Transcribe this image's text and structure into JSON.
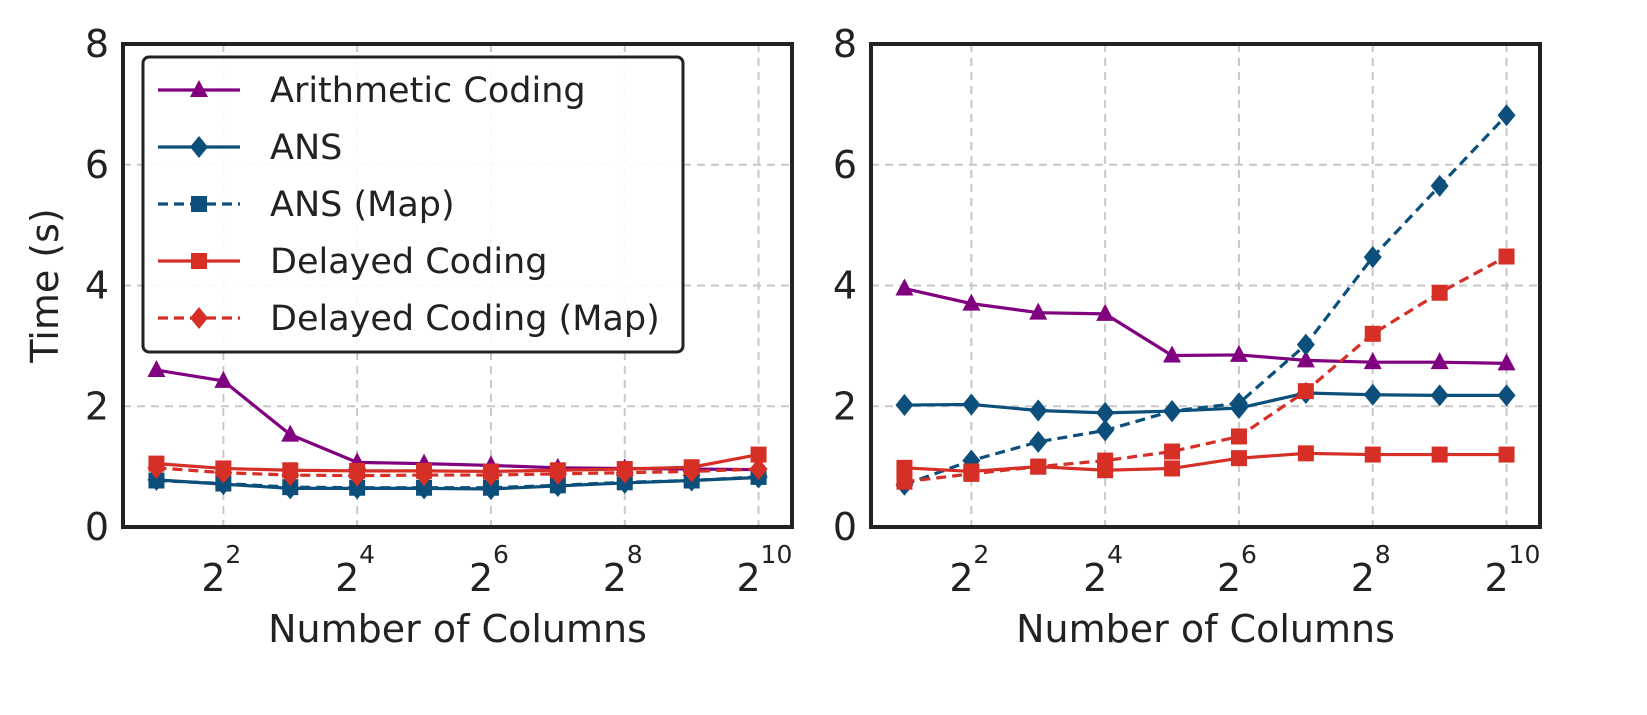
{
  "colors": {
    "arith": "#800080",
    "ans": "#0b4f7a",
    "delayed": "#d62f26"
  },
  "chart_data": [
    {
      "type": "line",
      "title": "",
      "xlabel": "Number of Columns",
      "ylabel": "Time (s)",
      "x": [
        1,
        2,
        3,
        4,
        5,
        6,
        7,
        8,
        9,
        10
      ],
      "x_scale": "log2 (exponent shown)",
      "xlim": [
        0.5,
        10.5
      ],
      "ylim": [
        0,
        8
      ],
      "yticks": [
        "0",
        "2",
        "4",
        "6",
        "8"
      ],
      "xticks": [
        {
          "x": 2,
          "base": "2",
          "exp": "2"
        },
        {
          "x": 4,
          "base": "2",
          "exp": "4"
        },
        {
          "x": 6,
          "base": "2",
          "exp": "6"
        },
        {
          "x": 8,
          "base": "2",
          "exp": "8"
        },
        {
          "x": 10,
          "base": "2",
          "exp": "10"
        }
      ],
      "grid": true,
      "legend_position": "top-left",
      "series": [
        {
          "key": "arith",
          "name": "Arithmetic Coding",
          "style": "solid",
          "marker": "triangle",
          "values": [
            2.6,
            2.42,
            1.53,
            1.07,
            1.05,
            1.02,
            0.98,
            0.97,
            0.96,
            0.95
          ]
        },
        {
          "key": "ans",
          "name": "ANS",
          "style": "solid",
          "marker": "diamond",
          "values": [
            0.78,
            0.71,
            0.64,
            0.64,
            0.64,
            0.63,
            0.68,
            0.73,
            0.77,
            0.82
          ]
        },
        {
          "key": "ans_map",
          "name": "ANS (Map)",
          "style": "dashed",
          "marker": "square",
          "values": [
            0.77,
            0.72,
            0.66,
            0.65,
            0.65,
            0.65,
            0.69,
            0.74,
            0.77,
            0.83
          ]
        },
        {
          "key": "delayed",
          "name": "Delayed Coding",
          "style": "solid",
          "marker": "square",
          "values": [
            1.05,
            0.97,
            0.94,
            0.93,
            0.93,
            0.92,
            0.94,
            0.96,
            0.99,
            1.2
          ]
        },
        {
          "key": "delayed_map",
          "name": "Delayed Coding (Map)",
          "style": "dashed",
          "marker": "diamond",
          "values": [
            0.98,
            0.9,
            0.86,
            0.85,
            0.86,
            0.86,
            0.88,
            0.9,
            0.92,
            0.96
          ]
        }
      ]
    },
    {
      "type": "line",
      "title": "",
      "xlabel": "Number of Columns",
      "ylabel": "",
      "x": [
        1,
        2,
        3,
        4,
        5,
        6,
        7,
        8,
        9,
        10
      ],
      "x_scale": "log2 (exponent shown)",
      "xlim": [
        0.5,
        10.5
      ],
      "ylim": [
        0,
        8
      ],
      "yticks": [
        "0",
        "2",
        "4",
        "6",
        "8"
      ],
      "xticks": [
        {
          "x": 2,
          "base": "2",
          "exp": "2"
        },
        {
          "x": 4,
          "base": "2",
          "exp": "4"
        },
        {
          "x": 6,
          "base": "2",
          "exp": "6"
        },
        {
          "x": 8,
          "base": "2",
          "exp": "8"
        },
        {
          "x": 10,
          "base": "2",
          "exp": "10"
        }
      ],
      "grid": true,
      "legend_position": "none",
      "series": [
        {
          "key": "arith",
          "name": "Arithmetic Coding",
          "style": "solid",
          "marker": "triangle",
          "values": [
            3.95,
            3.7,
            3.55,
            3.53,
            2.84,
            2.85,
            2.76,
            2.73,
            2.73,
            2.71
          ]
        },
        {
          "key": "ans",
          "name": "ANS",
          "style": "solid",
          "marker": "diamond",
          "values": [
            2.02,
            2.03,
            1.93,
            1.89,
            1.92,
            1.97,
            2.22,
            2.19,
            2.18,
            2.18
          ]
        },
        {
          "key": "ans_map",
          "name": "ANS (Map)",
          "style": "dashed",
          "marker": "diamond",
          "values": [
            0.7,
            1.1,
            1.41,
            1.6,
            1.92,
            2.05,
            3.02,
            4.47,
            5.65,
            6.82
          ]
        },
        {
          "key": "delayed",
          "name": "Delayed Coding",
          "style": "solid",
          "marker": "square",
          "values": [
            0.98,
            0.92,
            1.0,
            0.94,
            0.97,
            1.14,
            1.22,
            1.2,
            1.2,
            1.2
          ]
        },
        {
          "key": "delayed_map",
          "name": "Delayed Coding (Map)",
          "style": "dashed",
          "marker": "square",
          "values": [
            0.75,
            0.88,
            1.0,
            1.1,
            1.25,
            1.5,
            2.25,
            3.2,
            3.88,
            4.48
          ]
        }
      ]
    }
  ]
}
